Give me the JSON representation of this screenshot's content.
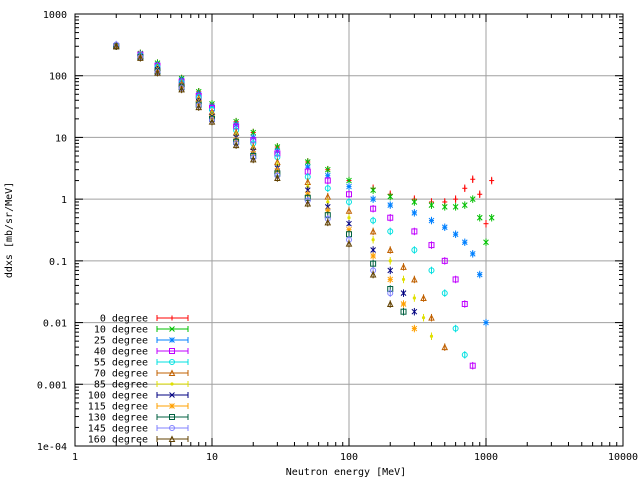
{
  "chart_data": {
    "type": "scatter",
    "xlabel": "Neutron energy [MeV]",
    "ylabel": "ddxs [mb/sr/MeV]",
    "xscale": "log",
    "yscale": "log",
    "xlim": [
      1,
      10000
    ],
    "ylim": [
      0.0001,
      1000
    ],
    "grid": true,
    "legend_position": "bottom-left",
    "x_tick_labels": [
      {
        "v": 1,
        "label": "1"
      },
      {
        "v": 10,
        "label": "10"
      },
      {
        "v": 100,
        "label": "100"
      },
      {
        "v": 1000,
        "label": "1000"
      },
      {
        "v": 10000,
        "label": "10000"
      }
    ],
    "y_tick_labels": [
      {
        "v": 0.0001,
        "label": "1e-04"
      },
      {
        "v": 0.001,
        "label": "0.001"
      },
      {
        "v": 0.01,
        "label": "0.01"
      },
      {
        "v": 0.1,
        "label": "0.1"
      },
      {
        "v": 1,
        "label": "1"
      },
      {
        "v": 10,
        "label": "10"
      },
      {
        "v": 100,
        "label": "100"
      },
      {
        "v": 1000,
        "label": "1000"
      }
    ],
    "series": [
      {
        "name": "0 degree",
        "color": "#ff0000",
        "marker": "plus",
        "x": [
          2,
          3,
          4,
          6,
          8,
          10,
          15,
          20,
          30,
          50,
          70,
          100,
          150,
          200,
          300,
          400,
          500,
          600,
          700,
          800,
          900,
          1000,
          1100
        ],
        "y": [
          300,
          230,
          160,
          90,
          55,
          35,
          18,
          12,
          7,
          4,
          3,
          2,
          1.5,
          1.2,
          1.0,
          0.9,
          0.9,
          1.0,
          1.5,
          2.1,
          1.2,
          0.4,
          2.0
        ]
      },
      {
        "name": "10 degree",
        "color": "#00c000",
        "marker": "cross",
        "x": [
          2,
          3,
          4,
          6,
          8,
          10,
          15,
          20,
          30,
          50,
          70,
          100,
          150,
          200,
          300,
          400,
          500,
          600,
          700,
          800,
          900,
          1000,
          1100
        ],
        "y": [
          300,
          230,
          160,
          90,
          55,
          35,
          18,
          12,
          7,
          4,
          3,
          2,
          1.4,
          1.1,
          0.9,
          0.8,
          0.75,
          0.75,
          0.8,
          1.0,
          0.5,
          0.2,
          0.5
        ]
      },
      {
        "name": "25 degree",
        "color": "#0080ff",
        "marker": "star",
        "x": [
          2,
          3,
          4,
          6,
          8,
          10,
          15,
          20,
          30,
          50,
          70,
          100,
          150,
          200,
          300,
          400,
          500,
          600,
          700,
          800,
          900,
          1000
        ],
        "y": [
          300,
          220,
          150,
          85,
          50,
          32,
          16,
          10,
          6,
          3.3,
          2.4,
          1.6,
          1.0,
          0.8,
          0.6,
          0.45,
          0.35,
          0.27,
          0.2,
          0.13,
          0.06,
          0.01
        ]
      },
      {
        "name": "40 degree",
        "color": "#c000ff",
        "marker": "square",
        "x": [
          2,
          3,
          4,
          6,
          8,
          10,
          15,
          20,
          30,
          50,
          70,
          100,
          150,
          200,
          300,
          400,
          500,
          600,
          700,
          800
        ],
        "y": [
          300,
          220,
          145,
          80,
          47,
          30,
          15,
          9,
          5.5,
          2.8,
          2.0,
          1.2,
          0.7,
          0.5,
          0.3,
          0.18,
          0.1,
          0.05,
          0.02,
          0.002
        ]
      },
      {
        "name": "55 degree",
        "color": "#00e0e0",
        "marker": "circle",
        "x": [
          2,
          3,
          4,
          6,
          8,
          10,
          15,
          20,
          30,
          50,
          70,
          100,
          150,
          200,
          300,
          400,
          500,
          600,
          700
        ],
        "y": [
          300,
          215,
          140,
          78,
          45,
          28,
          13,
          8,
          4.8,
          2.3,
          1.5,
          0.9,
          0.45,
          0.3,
          0.15,
          0.07,
          0.03,
          0.008,
          0.003
        ]
      },
      {
        "name": "70 degree",
        "color": "#c06000",
        "marker": "triangle",
        "x": [
          2,
          3,
          4,
          6,
          8,
          10,
          15,
          20,
          30,
          50,
          70,
          100,
          150,
          200,
          250,
          300,
          350,
          400,
          500
        ],
        "y": [
          300,
          210,
          135,
          75,
          43,
          26,
          12,
          7,
          4,
          1.9,
          1.1,
          0.65,
          0.3,
          0.15,
          0.08,
          0.05,
          0.025,
          0.012,
          0.004
        ]
      },
      {
        "name": "85 degree",
        "color": "#e0e000",
        "marker": "dot",
        "x": [
          2,
          3,
          4,
          6,
          8,
          10,
          15,
          20,
          30,
          50,
          70,
          100,
          150,
          200,
          250,
          300,
          350,
          400
        ],
        "y": [
          300,
          210,
          130,
          72,
          40,
          24,
          11,
          6.5,
          3.6,
          1.6,
          0.9,
          0.5,
          0.22,
          0.1,
          0.05,
          0.025,
          0.012,
          0.006
        ]
      },
      {
        "name": "100 degree",
        "color": "#000080",
        "marker": "cross",
        "x": [
          2,
          3,
          4,
          6,
          8,
          10,
          15,
          20,
          30,
          50,
          70,
          100,
          150,
          200,
          250,
          300
        ],
        "y": [
          300,
          205,
          125,
          70,
          38,
          22,
          10,
          6,
          3.2,
          1.4,
          0.75,
          0.4,
          0.15,
          0.07,
          0.03,
          0.015
        ]
      },
      {
        "name": "115 degree",
        "color": "#ffa000",
        "marker": "star",
        "x": [
          2,
          3,
          4,
          6,
          8,
          10,
          15,
          20,
          30,
          50,
          70,
          100,
          150,
          200,
          250,
          300
        ],
        "y": [
          300,
          200,
          120,
          68,
          36,
          21,
          9,
          5.5,
          2.9,
          1.2,
          0.65,
          0.32,
          0.12,
          0.05,
          0.02,
          0.008
        ]
      },
      {
        "name": "130 degree",
        "color": "#006040",
        "marker": "square",
        "x": [
          2,
          3,
          4,
          6,
          8,
          10,
          15,
          20,
          30,
          50,
          70,
          100,
          150,
          200,
          250
        ],
        "y": [
          300,
          200,
          118,
          65,
          34,
          20,
          8.5,
          5,
          2.6,
          1.05,
          0.55,
          0.27,
          0.09,
          0.035,
          0.015
        ]
      },
      {
        "name": "145 degree",
        "color": "#8080ff",
        "marker": "circle",
        "x": [
          2,
          3,
          4,
          6,
          8,
          10,
          15,
          20,
          30,
          50,
          70,
          100,
          150,
          200
        ],
        "y": [
          320,
          200,
          115,
          63,
          33,
          19,
          8,
          4.7,
          2.4,
          0.95,
          0.48,
          0.22,
          0.07,
          0.03
        ]
      },
      {
        "name": "160 degree",
        "color": "#604000",
        "marker": "triangle",
        "x": [
          2,
          3,
          4,
          6,
          8,
          10,
          15,
          20,
          30,
          50,
          70,
          100,
          150,
          200
        ],
        "y": [
          300,
          195,
          112,
          60,
          31,
          18,
          7.5,
          4.4,
          2.2,
          0.85,
          0.42,
          0.19,
          0.06,
          0.02
        ]
      }
    ]
  }
}
